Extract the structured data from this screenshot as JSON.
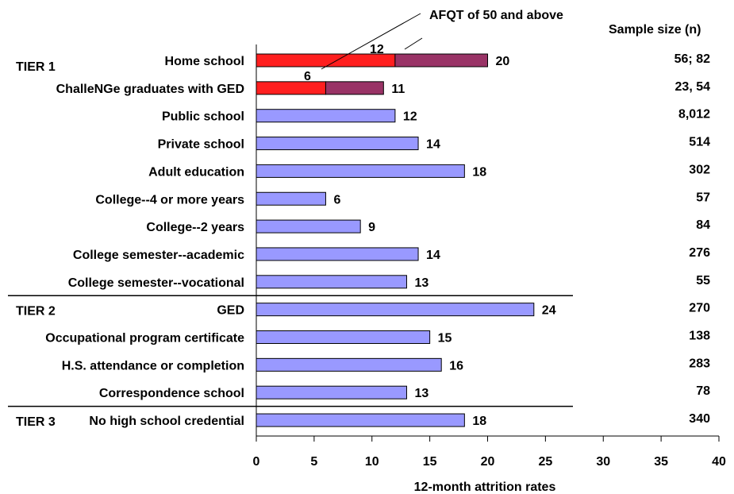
{
  "chart_data": {
    "type": "bar",
    "orientation": "horizontal",
    "xlabel": "12-month attrition rates",
    "xlim": [
      0,
      40
    ],
    "xticks": [
      0,
      5,
      10,
      15,
      20,
      25,
      30,
      35,
      40
    ],
    "sample_size_header": "Sample size (n)",
    "annotation": "AFQT of 50 and above",
    "colors": {
      "default": "#9999ff",
      "all_applicants": "#ff1f1f",
      "afqt_50_plus": "#993366"
    },
    "tiers": [
      {
        "label": "TIER 1",
        "first_row": 0
      },
      {
        "label": "TIER 2",
        "first_row": 9
      },
      {
        "label": "TIER 3",
        "first_row": 13
      }
    ],
    "categories": [
      "Home school",
      "ChalleNGe graduates with GED",
      "Public school",
      "Private school",
      "Adult education",
      "College--4 or more years",
      "College--2 years",
      "College semester--academic",
      "College semester--vocational",
      "GED",
      "Occupational program certificate",
      "H.S. attendance or completion",
      "Correspondence school",
      "No high school credential"
    ],
    "values": [
      20,
      11,
      12,
      14,
      18,
      6,
      9,
      14,
      13,
      24,
      15,
      16,
      13,
      18
    ],
    "afqt_values": [
      12,
      6,
      null,
      null,
      null,
      null,
      null,
      null,
      null,
      null,
      null,
      null,
      null,
      null
    ],
    "sample_sizes": [
      "56; 82",
      "23, 54",
      "8,012",
      "514",
      "302",
      "57",
      "84",
      "276",
      "55",
      "270",
      "138",
      "283",
      "78",
      "340"
    ]
  }
}
